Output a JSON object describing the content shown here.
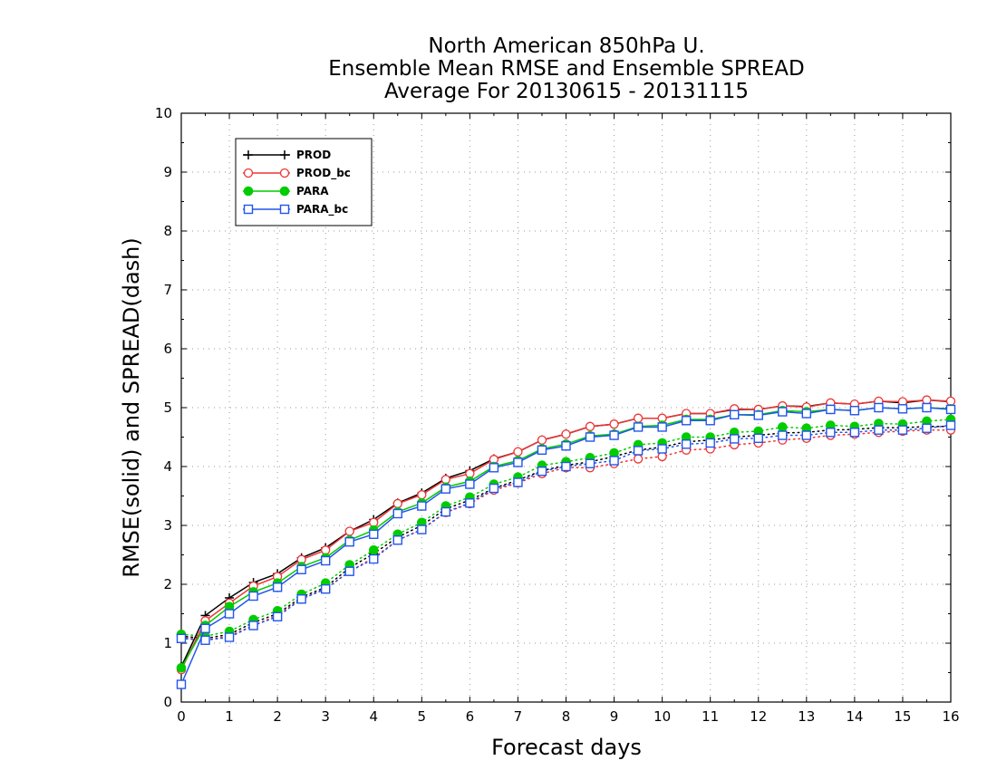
{
  "chart_data": {
    "type": "line",
    "title": [
      "North American 850hPa U.",
      "Ensemble Mean RMSE and Ensemble SPREAD",
      "Average For 20130615 - 20131115"
    ],
    "xlabel": "Forecast days",
    "ylabel": "RMSE(solid) and SPREAD(dash)",
    "xlim": [
      0,
      16
    ],
    "ylim": [
      0,
      10
    ],
    "xticks": [
      0,
      1,
      2,
      3,
      4,
      5,
      6,
      7,
      8,
      9,
      10,
      11,
      12,
      13,
      14,
      15,
      16
    ],
    "yticks": [
      0,
      1,
      2,
      3,
      4,
      5,
      6,
      7,
      8,
      9,
      10
    ],
    "grid": true,
    "legend_position": "top-left",
    "x": [
      0,
      0.5,
      1,
      1.5,
      2,
      2.5,
      3,
      3.5,
      4,
      4.5,
      5,
      5.5,
      6,
      6.5,
      7,
      7.5,
      8,
      8.5,
      9,
      9.5,
      10,
      10.5,
      11,
      11.5,
      12,
      12.5,
      13,
      13.5,
      14,
      14.5,
      15,
      15.5,
      16
    ],
    "series": [
      {
        "name": "PROD",
        "color": "#000000",
        "marker": "plus",
        "rmse": [
          0.6,
          1.47,
          1.77,
          2.03,
          2.18,
          2.45,
          2.62,
          2.9,
          3.1,
          3.38,
          3.55,
          3.8,
          3.93,
          4.13,
          4.25,
          4.45,
          4.55,
          4.68,
          4.72,
          4.82,
          4.82,
          4.9,
          4.9,
          4.97,
          4.97,
          5.03,
          5.02,
          5.08,
          5.06,
          5.11,
          5.08,
          5.13,
          5.1
        ],
        "spread": [
          1.12,
          1.08,
          1.15,
          1.35,
          1.5,
          1.78,
          1.95,
          2.28,
          2.52,
          2.8,
          3.0,
          3.28,
          3.43,
          3.63,
          3.77,
          3.93,
          4.02,
          4.08,
          4.17,
          4.28,
          4.33,
          4.42,
          4.45,
          4.5,
          4.53,
          4.57,
          4.58,
          4.62,
          4.63,
          4.66,
          4.66,
          4.68,
          4.68
        ]
      },
      {
        "name": "PROD_bc",
        "color": "#ee3333",
        "marker": "open-circle",
        "rmse": [
          0.55,
          1.38,
          1.68,
          1.97,
          2.13,
          2.42,
          2.58,
          2.9,
          3.05,
          3.37,
          3.52,
          3.78,
          3.88,
          4.12,
          4.25,
          4.45,
          4.55,
          4.68,
          4.72,
          4.82,
          4.82,
          4.9,
          4.9,
          4.98,
          4.97,
          5.03,
          5.01,
          5.08,
          5.06,
          5.11,
          5.1,
          5.13,
          5.11
        ],
        "spread": [
          1.1,
          1.05,
          1.12,
          1.3,
          1.47,
          1.75,
          1.92,
          2.22,
          2.45,
          2.75,
          2.93,
          3.22,
          3.37,
          3.6,
          3.72,
          3.88,
          3.98,
          3.98,
          4.05,
          4.13,
          4.17,
          4.28,
          4.3,
          4.37,
          4.4,
          4.45,
          4.48,
          4.53,
          4.55,
          4.58,
          4.6,
          4.62,
          4.62
        ]
      },
      {
        "name": "PARA",
        "color": "#00cc00",
        "marker": "filled-circle",
        "rmse": [
          0.58,
          1.3,
          1.62,
          1.87,
          2.02,
          2.3,
          2.45,
          2.75,
          2.92,
          3.23,
          3.38,
          3.65,
          3.75,
          4.0,
          4.1,
          4.3,
          4.38,
          4.52,
          4.55,
          4.68,
          4.7,
          4.8,
          4.8,
          4.88,
          4.88,
          4.95,
          4.93,
          4.97,
          4.95,
          5.0,
          4.98,
          5.0,
          4.98
        ],
        "spread": [
          1.15,
          1.12,
          1.2,
          1.4,
          1.55,
          1.83,
          2.02,
          2.33,
          2.58,
          2.85,
          3.05,
          3.33,
          3.48,
          3.7,
          3.82,
          4.02,
          4.08,
          4.15,
          4.23,
          4.37,
          4.4,
          4.5,
          4.5,
          4.58,
          4.6,
          4.67,
          4.65,
          4.7,
          4.68,
          4.73,
          4.72,
          4.77,
          4.8
        ]
      },
      {
        "name": "PARA_bc",
        "color": "#2255ee",
        "marker": "open-square",
        "rmse": [
          0.3,
          1.25,
          1.5,
          1.8,
          1.95,
          2.25,
          2.4,
          2.72,
          2.85,
          3.2,
          3.33,
          3.62,
          3.7,
          3.98,
          4.07,
          4.28,
          4.35,
          4.5,
          4.53,
          4.67,
          4.67,
          4.78,
          4.78,
          4.88,
          4.87,
          4.93,
          4.9,
          4.97,
          4.95,
          5.0,
          4.98,
          5.0,
          4.97
        ],
        "spread": [
          1.08,
          1.05,
          1.1,
          1.3,
          1.45,
          1.75,
          1.92,
          2.22,
          2.43,
          2.75,
          2.93,
          3.23,
          3.38,
          3.63,
          3.73,
          3.92,
          4.0,
          4.05,
          4.1,
          4.27,
          4.3,
          4.38,
          4.4,
          4.47,
          4.48,
          4.53,
          4.53,
          4.58,
          4.58,
          4.62,
          4.62,
          4.65,
          4.7
        ]
      }
    ]
  }
}
